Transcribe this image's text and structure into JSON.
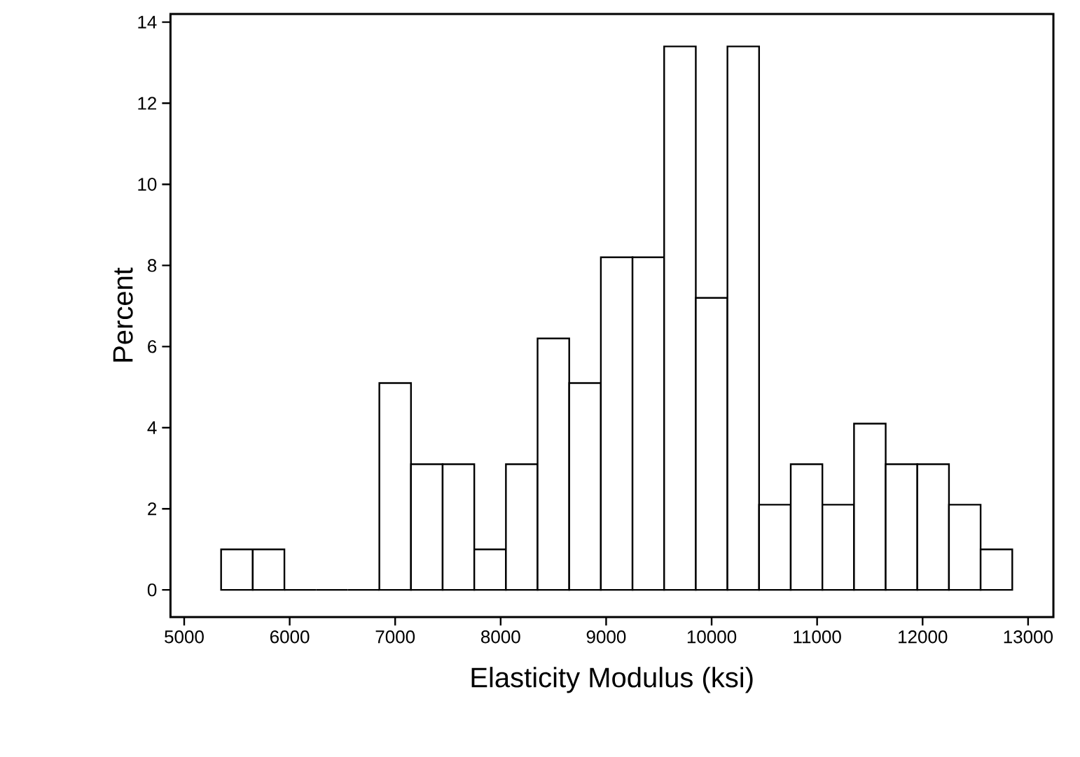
{
  "chart_data": {
    "type": "histogram",
    "xlabel": "Elasticity Modulus (ksi)",
    "ylabel": "Percent",
    "bins": [
      5350,
      5650,
      5950,
      6250,
      6550,
      6850,
      7150,
      7450,
      7750,
      8050,
      8350,
      8650,
      8950,
      9250,
      9550,
      9850,
      10150,
      10450,
      10750,
      11050,
      11350,
      11650,
      11950,
      12250,
      12550,
      12850
    ],
    "values": [
      1.0,
      1.0,
      0,
      0,
      0,
      5.1,
      3.1,
      3.1,
      1.0,
      3.1,
      6.2,
      5.1,
      8.2,
      8.2,
      13.4,
      7.2,
      13.4,
      2.1,
      3.1,
      2.1,
      4.1,
      3.1,
      3.1,
      2.1,
      1.0
    ],
    "xlim": [
      4870,
      13240
    ],
    "ylim": [
      -0.67,
      14.2
    ],
    "xticks": [
      5000,
      6000,
      7000,
      8000,
      9000,
      10000,
      11000,
      12000,
      13000
    ],
    "yticks": [
      0,
      2,
      4,
      6,
      8,
      10,
      12,
      14
    ]
  }
}
